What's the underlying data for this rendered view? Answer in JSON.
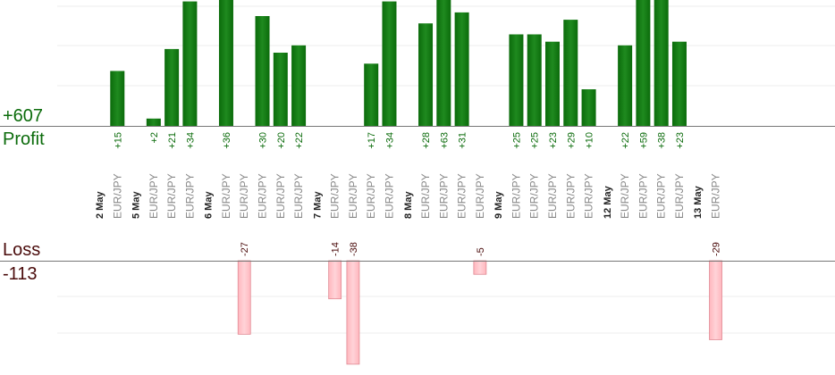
{
  "summary": {
    "profit_total": "+607",
    "profit_label": "Profit",
    "loss_label": "Loss",
    "loss_total": "-113"
  },
  "colors": {
    "profit_bar": "#0b6b0b",
    "profit_bar_light": "#1f8a1f",
    "profit_text": "#0b6b0b",
    "loss_bar": "#ffb6bd",
    "loss_bar_edge": "#e08a94",
    "loss_text": "#4a0b0b",
    "date_text": "#222222",
    "pair_text": "#888888",
    "grid": "#eeeeee",
    "baseline": "#777777"
  },
  "chart_data": {
    "type": "bar",
    "profit_ylim": [
      0,
      32
    ],
    "loss_ylim": [
      0,
      40
    ],
    "rows": [
      {
        "kind": "date",
        "label": "2 May"
      },
      {
        "kind": "trade",
        "label": "EUR/JPY",
        "value": 15,
        "display": "+15"
      },
      {
        "kind": "date",
        "label": "5 May"
      },
      {
        "kind": "trade",
        "label": "EUR/JPY",
        "value": 2,
        "display": "+2"
      },
      {
        "kind": "trade",
        "label": "EUR/JPY",
        "value": 21,
        "display": "+21"
      },
      {
        "kind": "trade",
        "label": "EUR/JPY",
        "value": 34,
        "display": "+34"
      },
      {
        "kind": "date",
        "label": "6 May"
      },
      {
        "kind": "trade",
        "label": "EUR/JPY",
        "value": 36,
        "display": "+36"
      },
      {
        "kind": "trade",
        "label": "EUR/JPY",
        "value": -27,
        "display": "-27"
      },
      {
        "kind": "trade",
        "label": "EUR/JPY",
        "value": 30,
        "display": "+30"
      },
      {
        "kind": "trade",
        "label": "EUR/JPY",
        "value": 20,
        "display": "+20"
      },
      {
        "kind": "trade",
        "label": "EUR/JPY",
        "value": 22,
        "display": "+22"
      },
      {
        "kind": "date",
        "label": "7 May"
      },
      {
        "kind": "trade",
        "label": "EUR/JPY",
        "value": -14,
        "display": "-14"
      },
      {
        "kind": "trade",
        "label": "EUR/JPY",
        "value": -38,
        "display": "-38"
      },
      {
        "kind": "trade",
        "label": "EUR/JPY",
        "value": 17,
        "display": "+17"
      },
      {
        "kind": "trade",
        "label": "EUR/JPY",
        "value": 34,
        "display": "+34"
      },
      {
        "kind": "date",
        "label": "8 May"
      },
      {
        "kind": "trade",
        "label": "EUR/JPY",
        "value": 28,
        "display": "+28"
      },
      {
        "kind": "trade",
        "label": "EUR/JPY",
        "value": 63,
        "display": "+63"
      },
      {
        "kind": "trade",
        "label": "EUR/JPY",
        "value": 31,
        "display": "+31"
      },
      {
        "kind": "trade",
        "label": "EUR/JPY",
        "value": -5,
        "display": "-5"
      },
      {
        "kind": "date",
        "label": "9 May"
      },
      {
        "kind": "trade",
        "label": "EUR/JPY",
        "value": 25,
        "display": "+25"
      },
      {
        "kind": "trade",
        "label": "EUR/JPY",
        "value": 25,
        "display": "+25"
      },
      {
        "kind": "trade",
        "label": "EUR/JPY",
        "value": 23,
        "display": "+23"
      },
      {
        "kind": "trade",
        "label": "EUR/JPY",
        "value": 29,
        "display": "+29"
      },
      {
        "kind": "trade",
        "label": "EUR/JPY",
        "value": 10,
        "display": "+10"
      },
      {
        "kind": "date",
        "label": "12 May"
      },
      {
        "kind": "trade",
        "label": "EUR/JPY",
        "value": 22,
        "display": "+22"
      },
      {
        "kind": "trade",
        "label": "EUR/JPY",
        "value": 59,
        "display": "+59"
      },
      {
        "kind": "trade",
        "label": "EUR/JPY",
        "value": 38,
        "display": "+38"
      },
      {
        "kind": "trade",
        "label": "EUR/JPY",
        "value": 23,
        "display": "+23"
      },
      {
        "kind": "date",
        "label": "13 May"
      },
      {
        "kind": "trade",
        "label": "EUR/JPY",
        "value": -29,
        "display": "-29"
      }
    ]
  }
}
